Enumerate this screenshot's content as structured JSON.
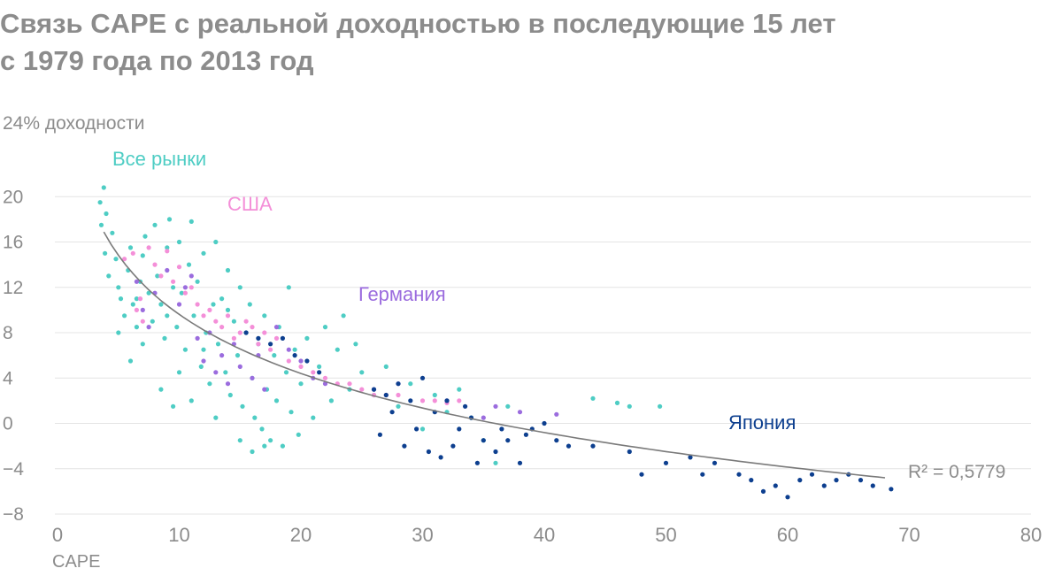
{
  "header": {
    "title_line1": "Связь CAPE с реальной доходностью в последующие 15 лет",
    "title_line2": "с 1979 года по 2013 год"
  },
  "chart_data": {
    "type": "scatter",
    "title": "Связь CAPE с реальной доходностью в последующие 15 лет с 1979 года по 2013 год",
    "ylabel": "24% доходности",
    "xlabel": "CAPE",
    "xlim": [
      0,
      80
    ],
    "ylim": [
      -8,
      24
    ],
    "x_ticks": [
      0,
      10,
      20,
      30,
      40,
      50,
      60,
      70,
      80
    ],
    "y_ticks": [
      -8,
      -4,
      0,
      4,
      8,
      12,
      16,
      20
    ],
    "y_tick_labels": [
      "−8",
      "−4",
      "0",
      "4",
      "8",
      "12",
      "16",
      "20"
    ],
    "grid": true,
    "series": [
      {
        "name": "Все рынки",
        "color": "#4ecdc4",
        "points": [
          [
            3.5,
            19.5
          ],
          [
            3.8,
            20.8
          ],
          [
            3.6,
            17.5
          ],
          [
            4.0,
            18.5
          ],
          [
            3.9,
            15.0
          ],
          [
            4.2,
            13.0
          ],
          [
            4.5,
            16.8
          ],
          [
            4.8,
            14.5
          ],
          [
            5.0,
            12.0
          ],
          [
            5.2,
            11.0
          ],
          [
            5.5,
            9.5
          ],
          [
            5.8,
            13.5
          ],
          [
            6.0,
            15.5
          ],
          [
            6.2,
            10.5
          ],
          [
            6.5,
            8.5
          ],
          [
            6.8,
            12.5
          ],
          [
            7.0,
            14.8
          ],
          [
            7.2,
            16.5
          ],
          [
            7.5,
            11.5
          ],
          [
            7.8,
            9.0
          ],
          [
            8.0,
            17.5
          ],
          [
            8.2,
            13.0
          ],
          [
            8.5,
            10.5
          ],
          [
            8.8,
            7.5
          ],
          [
            9.0,
            15.5
          ],
          [
            9.2,
            18.0
          ],
          [
            9.5,
            12.0
          ],
          [
            9.8,
            8.5
          ],
          [
            10.0,
            16.0
          ],
          [
            10.2,
            11.5
          ],
          [
            10.5,
            6.5
          ],
          [
            10.8,
            14.0
          ],
          [
            11.0,
            17.8
          ],
          [
            11.2,
            9.5
          ],
          [
            11.5,
            12.5
          ],
          [
            11.8,
            5.0
          ],
          [
            12.0,
            15.0
          ],
          [
            12.2,
            8.0
          ],
          [
            12.5,
            3.5
          ],
          [
            12.8,
            10.5
          ],
          [
            13.0,
            16.0
          ],
          [
            13.2,
            7.0
          ],
          [
            13.5,
            11.0
          ],
          [
            13.8,
            4.5
          ],
          [
            14.0,
            13.5
          ],
          [
            14.2,
            2.5
          ],
          [
            14.5,
            9.0
          ],
          [
            14.8,
            6.0
          ],
          [
            15.0,
            12.0
          ],
          [
            15.2,
            1.5
          ],
          [
            15.5,
            8.0
          ],
          [
            15.8,
            10.5
          ],
          [
            16.0,
            4.0
          ],
          [
            16.2,
            0.5
          ],
          [
            16.5,
            7.0
          ],
          [
            16.8,
            -0.5
          ],
          [
            17.0,
            9.5
          ],
          [
            17.2,
            3.0
          ],
          [
            17.5,
            -1.5
          ],
          [
            17.8,
            6.0
          ],
          [
            18.0,
            2.0
          ],
          [
            18.2,
            8.5
          ],
          [
            18.5,
            -2.0
          ],
          [
            18.8,
            4.5
          ],
          [
            19.0,
            12.0
          ],
          [
            19.2,
            1.0
          ],
          [
            19.5,
            6.5
          ],
          [
            19.8,
            -1.0
          ],
          [
            20.0,
            3.5
          ],
          [
            20.5,
            7.5
          ],
          [
            21.0,
            0.5
          ],
          [
            21.5,
            5.0
          ],
          [
            22.0,
            8.5
          ],
          [
            22.5,
            2.0
          ],
          [
            23.0,
            6.5
          ],
          [
            23.5,
            9.5
          ],
          [
            24.0,
            3.0
          ],
          [
            24.5,
            7.0
          ],
          [
            25.0,
            4.5
          ],
          [
            26.0,
            2.5
          ],
          [
            27.0,
            5.0
          ],
          [
            28.0,
            1.5
          ],
          [
            29.0,
            3.5
          ],
          [
            30.0,
            -0.5
          ],
          [
            31.0,
            2.5
          ],
          [
            32.0,
            1.0
          ],
          [
            33.0,
            3.0
          ],
          [
            34.0,
            0.5
          ],
          [
            35.0,
            -1.5
          ],
          [
            36.0,
            -3.5
          ],
          [
            37.0,
            1.5
          ],
          [
            44.0,
            2.2
          ],
          [
            46.0,
            1.8
          ],
          [
            47.0,
            1.5
          ],
          [
            49.5,
            1.5
          ],
          [
            6.0,
            5.5
          ],
          [
            8.5,
            3.0
          ],
          [
            9.5,
            1.5
          ],
          [
            11.0,
            2.0
          ],
          [
            13.0,
            0.5
          ],
          [
            15.0,
            -1.5
          ],
          [
            16.0,
            -2.5
          ],
          [
            17.0,
            -2.0
          ],
          [
            7.0,
            7.0
          ],
          [
            9.0,
            9.5
          ],
          [
            10.0,
            4.5
          ],
          [
            12.0,
            6.5
          ],
          [
            14.0,
            10.0
          ],
          [
            5.0,
            8.0
          ],
          [
            6.5,
            11.0
          ]
        ]
      },
      {
        "name": "США",
        "color": "#f48fd8",
        "points": [
          [
            5.5,
            14.5
          ],
          [
            6.2,
            15.0
          ],
          [
            6.8,
            11.0
          ],
          [
            7.5,
            15.5
          ],
          [
            8.0,
            14.0
          ],
          [
            8.5,
            13.0
          ],
          [
            9.0,
            15.2
          ],
          [
            9.5,
            12.5
          ],
          [
            10.0,
            13.8
          ],
          [
            10.5,
            11.5
          ],
          [
            11.0,
            12.0
          ],
          [
            11.5,
            10.5
          ],
          [
            12.0,
            9.5
          ],
          [
            12.5,
            10.0
          ],
          [
            13.0,
            9.0
          ],
          [
            13.5,
            8.5
          ],
          [
            14.0,
            9.5
          ],
          [
            14.5,
            7.5
          ],
          [
            15.0,
            8.0
          ],
          [
            15.5,
            9.0
          ],
          [
            16.0,
            8.5
          ],
          [
            16.5,
            7.0
          ],
          [
            17.0,
            8.0
          ],
          [
            17.5,
            6.5
          ],
          [
            18.0,
            7.5
          ],
          [
            19.0,
            5.5
          ],
          [
            20.0,
            5.0
          ],
          [
            21.0,
            4.5
          ],
          [
            22.0,
            4.0
          ],
          [
            23.0,
            3.5
          ],
          [
            24.0,
            3.5
          ],
          [
            25.0,
            3.0
          ],
          [
            26.0,
            2.5
          ],
          [
            27.0,
            2.5
          ],
          [
            28.0,
            2.5
          ],
          [
            30.0,
            2.0
          ],
          [
            31.0,
            2.0
          ],
          [
            32.0,
            1.8
          ],
          [
            33.0,
            2.0
          ],
          [
            6.5,
            10.0
          ],
          [
            7.0,
            9.0
          ]
        ]
      },
      {
        "name": "Германия",
        "color": "#9b6cde",
        "points": [
          [
            6.5,
            12.5
          ],
          [
            7.0,
            10.0
          ],
          [
            7.5,
            8.5
          ],
          [
            8.0,
            11.5
          ],
          [
            9.0,
            13.5
          ],
          [
            10.0,
            10.5
          ],
          [
            10.5,
            12.0
          ],
          [
            11.0,
            13.0
          ],
          [
            11.5,
            7.5
          ],
          [
            12.0,
            5.5
          ],
          [
            12.5,
            8.0
          ],
          [
            13.0,
            4.5
          ],
          [
            13.5,
            6.0
          ],
          [
            14.0,
            3.5
          ],
          [
            14.5,
            7.0
          ],
          [
            15.0,
            5.0
          ],
          [
            16.0,
            4.0
          ],
          [
            16.5,
            6.0
          ],
          [
            17.0,
            3.0
          ],
          [
            18.0,
            8.5
          ],
          [
            19.0,
            6.5
          ],
          [
            20.0,
            5.5
          ],
          [
            21.0,
            4.0
          ],
          [
            22.0,
            3.5
          ],
          [
            26.0,
            3.0
          ],
          [
            28.0,
            3.5
          ],
          [
            32.0,
            2.0
          ],
          [
            36.0,
            1.5
          ],
          [
            38.0,
            1.0
          ],
          [
            41.0,
            0.8
          ],
          [
            35.0,
            0.5
          ]
        ]
      },
      {
        "name": "Япония",
        "color": "#0d3f8f",
        "points": [
          [
            15.5,
            8.0
          ],
          [
            16.5,
            7.5
          ],
          [
            17.5,
            7.0
          ],
          [
            18.5,
            7.5
          ],
          [
            19.5,
            6.0
          ],
          [
            20.5,
            5.5
          ],
          [
            21.5,
            4.5
          ],
          [
            26.0,
            3.0
          ],
          [
            27.0,
            2.5
          ],
          [
            28.0,
            3.5
          ],
          [
            29.0,
            2.0
          ],
          [
            30.0,
            4.0
          ],
          [
            31.0,
            1.0
          ],
          [
            32.0,
            2.0
          ],
          [
            33.0,
            -0.5
          ],
          [
            34.0,
            0.5
          ],
          [
            35.0,
            -1.5
          ],
          [
            36.0,
            -2.5
          ],
          [
            37.0,
            -1.5
          ],
          [
            38.0,
            -3.5
          ],
          [
            39.0,
            -0.5
          ],
          [
            40.0,
            0.0
          ],
          [
            26.5,
            -1.0
          ],
          [
            28.5,
            -2.0
          ],
          [
            30.5,
            -2.5
          ],
          [
            31.5,
            -3.0
          ],
          [
            32.5,
            -2.0
          ],
          [
            34.5,
            -3.5
          ],
          [
            41.0,
            -1.5
          ],
          [
            42.0,
            -2.0
          ],
          [
            44.0,
            -2.0
          ],
          [
            47.0,
            -2.5
          ],
          [
            48.0,
            -4.5
          ],
          [
            50.0,
            -3.5
          ],
          [
            52.0,
            -3.0
          ],
          [
            53.0,
            -4.5
          ],
          [
            54.0,
            -3.5
          ],
          [
            56.0,
            -4.5
          ],
          [
            57.0,
            -5.0
          ],
          [
            58.0,
            -6.0
          ],
          [
            59.0,
            -5.5
          ],
          [
            60.0,
            -6.5
          ],
          [
            61.0,
            -5.0
          ],
          [
            62.0,
            -4.5
          ],
          [
            63.0,
            -5.5
          ],
          [
            64.0,
            -5.0
          ],
          [
            65.0,
            -4.5
          ],
          [
            66.0,
            -5.0
          ],
          [
            67.0,
            -5.5
          ],
          [
            68.5,
            -5.8
          ],
          [
            27.5,
            1.0
          ],
          [
            29.5,
            -0.5
          ],
          [
            33.5,
            1.5
          ],
          [
            36.5,
            -0.5
          ],
          [
            38.5,
            -1.0
          ]
        ]
      }
    ],
    "trendline": {
      "r2_label": "R² = 0,5779",
      "r2": 0.5779
    },
    "annotations": [
      {
        "text": "Все рынки",
        "series": "Все рынки"
      },
      {
        "text": "США",
        "series": "США"
      },
      {
        "text": "Германия",
        "series": "Германия"
      },
      {
        "text": "Япония",
        "series": "Япония"
      }
    ]
  }
}
